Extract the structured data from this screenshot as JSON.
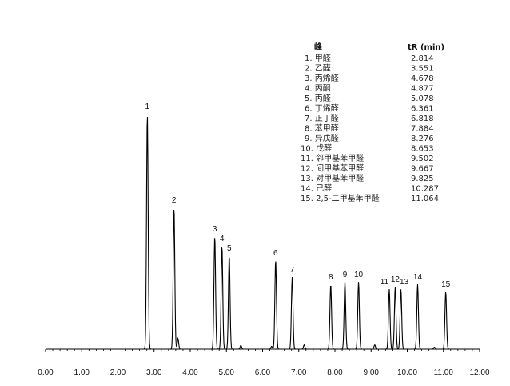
{
  "chart_data": {
    "type": "line",
    "title": "",
    "xlabel": "",
    "ylabel": "",
    "xlim": [
      0.0,
      12.0
    ],
    "x_ticks": [
      "0.00",
      "1.00",
      "2.00",
      "3.00",
      "4.00",
      "5.00",
      "6.00",
      "7.00",
      "8.00",
      "9.00",
      "10.00",
      "11.00",
      "12.00"
    ],
    "table_header": {
      "peak": "峰",
      "rt": "tR (min)"
    },
    "peaks": [
      {
        "num": "1",
        "name": "甲醛",
        "rt": 2.814,
        "height": 0.98
      },
      {
        "num": "2",
        "name": "乙醛",
        "rt": 3.551,
        "height": 0.59
      },
      {
        "num": "3",
        "name": "丙烯醛",
        "rt": 4.678,
        "height": 0.47
      },
      {
        "num": "4",
        "name": "丙酮",
        "rt": 4.877,
        "height": 0.43
      },
      {
        "num": "5",
        "name": "丙醛",
        "rt": 5.078,
        "height": 0.39
      },
      {
        "num": "6",
        "name": "丁烯醛",
        "rt": 6.361,
        "height": 0.37
      },
      {
        "num": "7",
        "name": "正丁醛",
        "rt": 6.818,
        "height": 0.3
      },
      {
        "num": "8",
        "name": "苯甲醛",
        "rt": 7.884,
        "height": 0.27
      },
      {
        "num": "9",
        "name": "异戊醛",
        "rt": 8.276,
        "height": 0.28
      },
      {
        "num": "10",
        "name": "戊醛",
        "rt": 8.653,
        "height": 0.28
      },
      {
        "num": "11",
        "name": "邻甲基苯甲醛",
        "rt": 9.502,
        "height": 0.25
      },
      {
        "num": "12",
        "name": "间甲基苯甲醛",
        "rt": 9.667,
        "height": 0.26
      },
      {
        "num": "13",
        "name": "对甲基苯甲醛",
        "rt": 9.825,
        "height": 0.25
      },
      {
        "num": "14",
        "name": "己醛",
        "rt": 10.287,
        "height": 0.27
      },
      {
        "num": "15",
        "name": "2,5-二甲基苯甲醛",
        "rt": 11.064,
        "height": 0.24
      }
    ],
    "minor_peaks": [
      {
        "rt": 3.66,
        "height": 0.045
      },
      {
        "rt": 5.4,
        "height": 0.016
      },
      {
        "rt": 6.25,
        "height": 0.012
      },
      {
        "rt": 7.15,
        "height": 0.018
      },
      {
        "rt": 9.1,
        "height": 0.018
      },
      {
        "rt": 10.75,
        "height": 0.008
      }
    ],
    "grid": false,
    "line_color": "#000000"
  }
}
